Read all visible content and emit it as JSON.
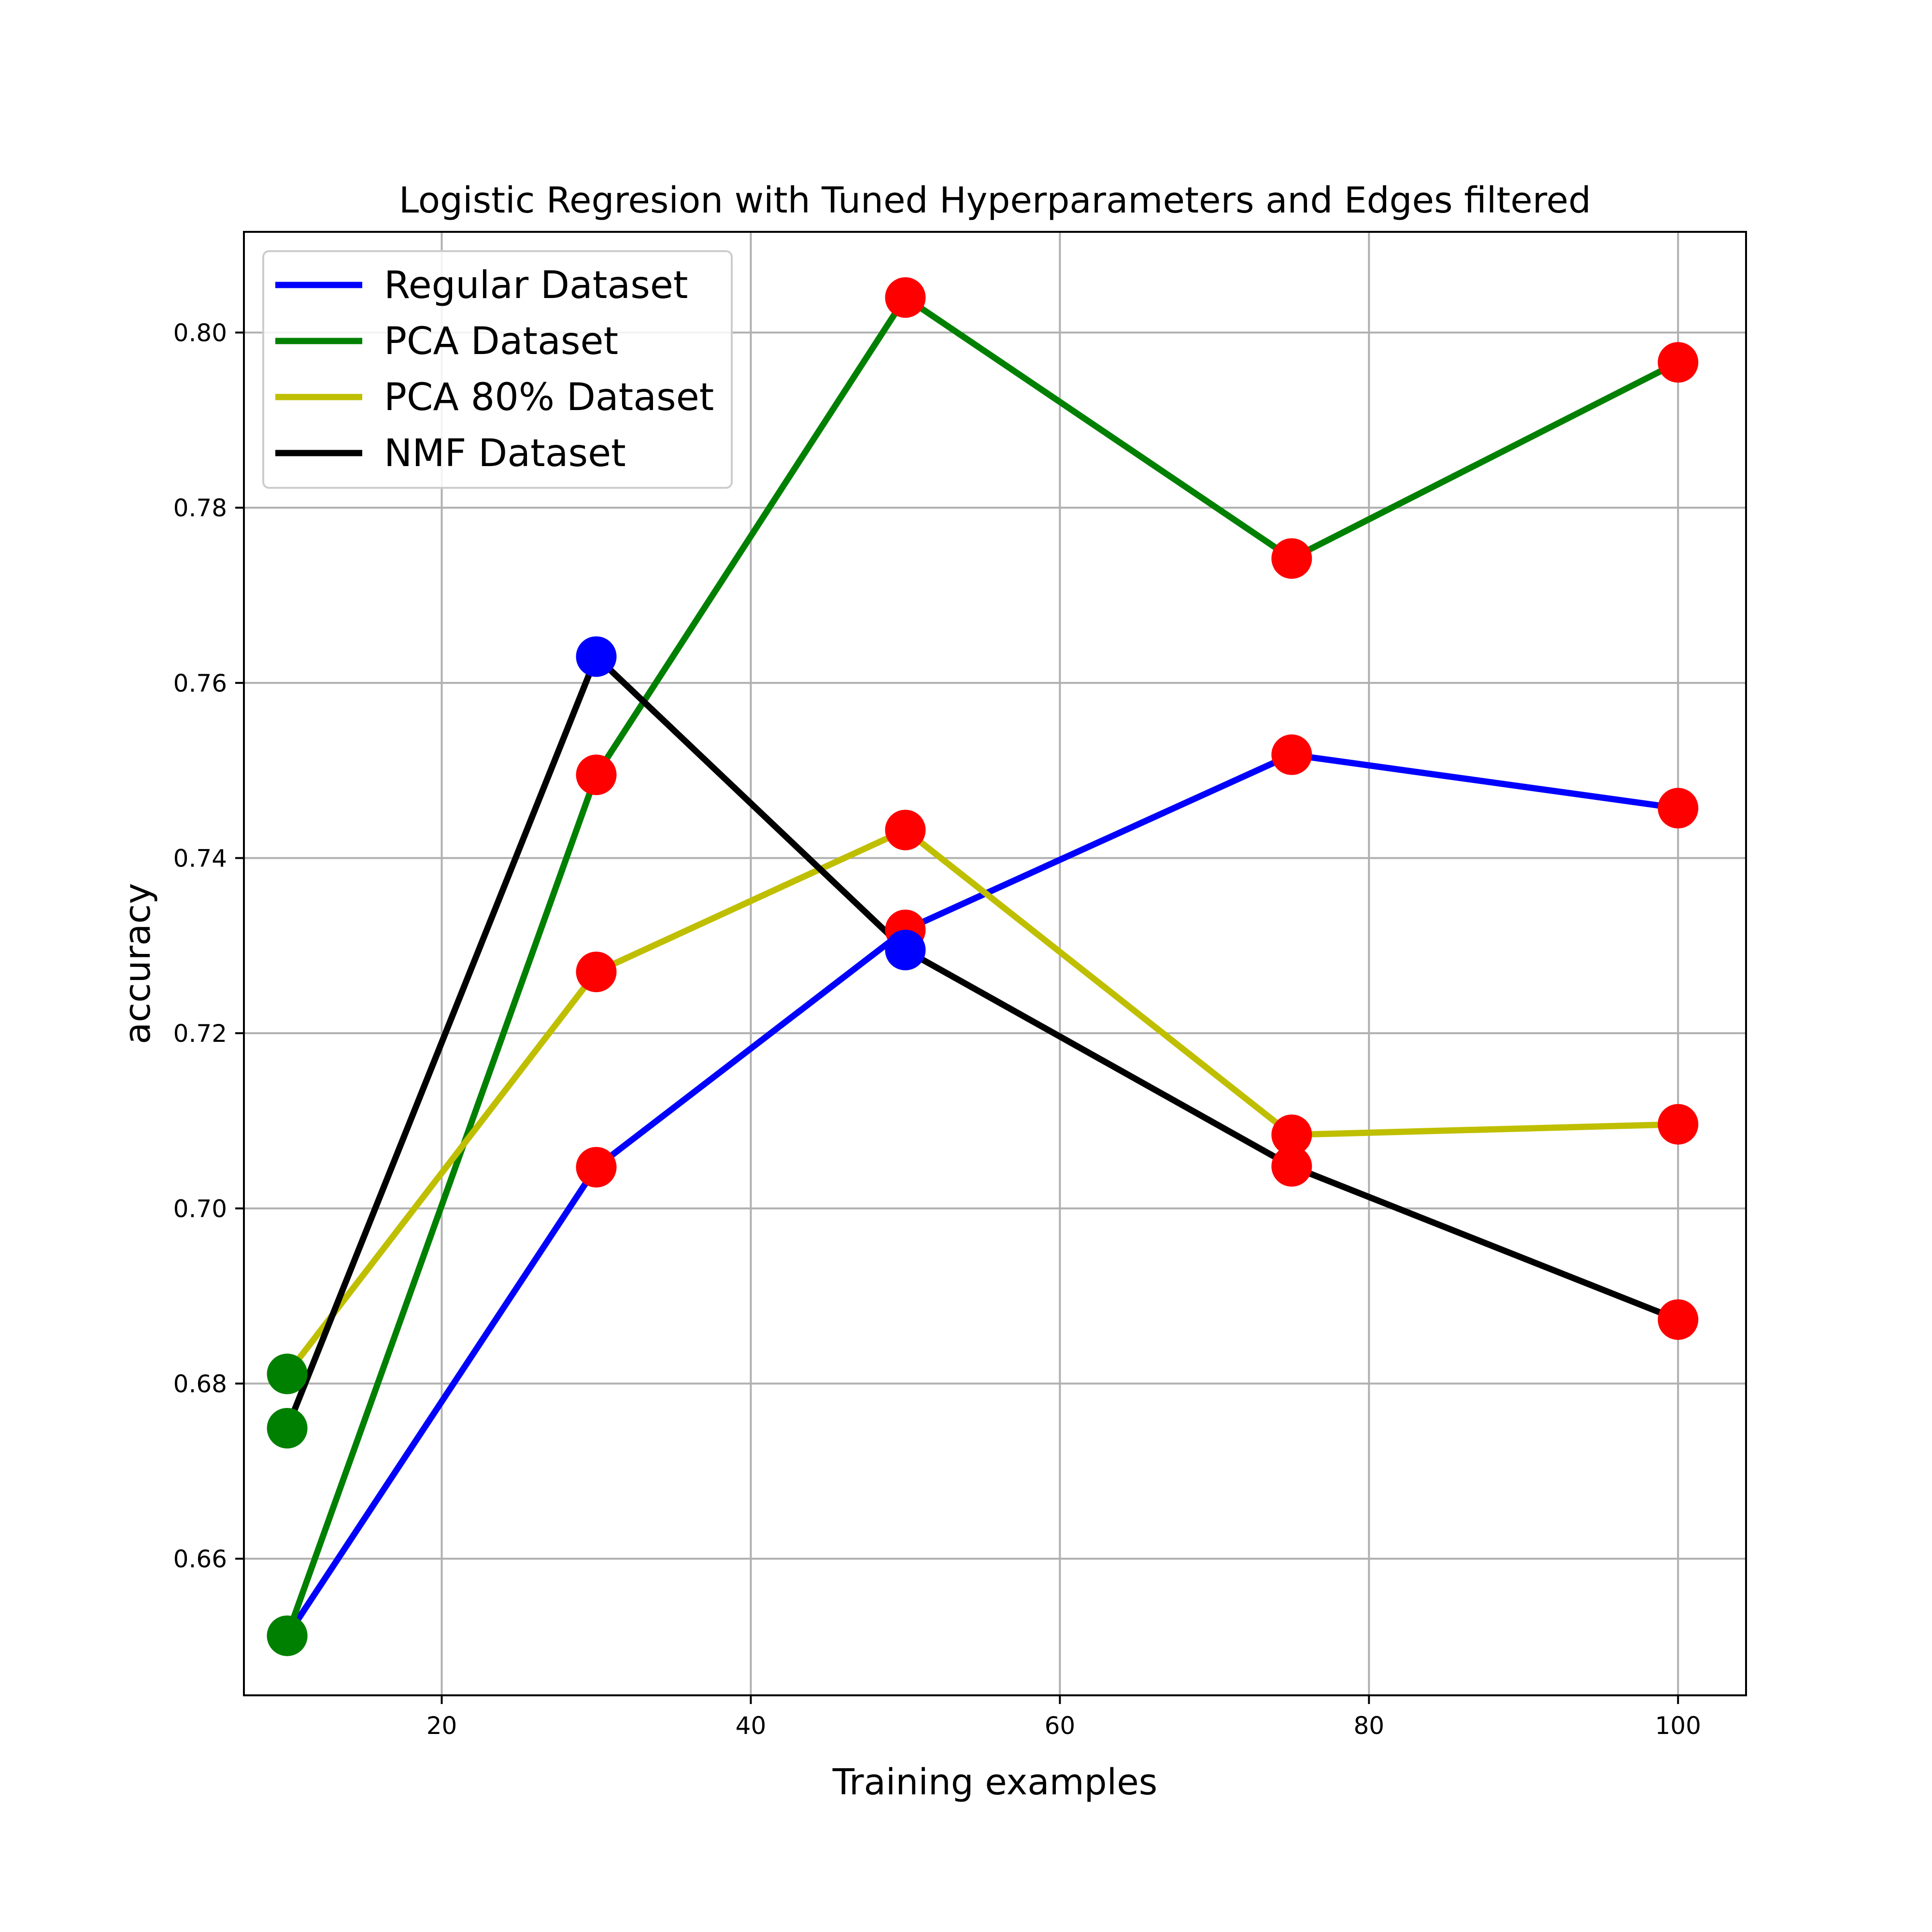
{
  "chart_data": {
    "type": "line",
    "title": "Logistic Regresion with Tuned Hyperparameters and Edges filtered",
    "xlabel": "Training examples",
    "ylabel": "accuracy",
    "xlim": [
      7.2,
      104.4
    ],
    "ylim": [
      0.6444,
      0.8115
    ],
    "xticks": [
      20,
      40,
      60,
      80,
      100
    ],
    "xtick_labels": [
      "20",
      "40",
      "60",
      "80",
      "100"
    ],
    "yticks": [
      0.66,
      0.68,
      0.7,
      0.72,
      0.74,
      0.76,
      0.78,
      0.8
    ],
    "ytick_labels": [
      "0.66",
      "0.68",
      "0.70",
      "0.72",
      "0.74",
      "0.76",
      "0.78",
      "0.80"
    ],
    "grid": true,
    "legend_position": "upper-left",
    "x": [
      10,
      30,
      50,
      75,
      100
    ],
    "series": [
      {
        "name": "Regular Dataset",
        "color": "#0000ff",
        "values": [
          0.6512,
          0.7047,
          0.7318,
          0.7518,
          0.7457
        ],
        "marker_colors": [
          "#008000",
          "#ff0000",
          "#ff0000",
          "#ff0000",
          "#ff0000"
        ]
      },
      {
        "name": "PCA Dataset",
        "color": "#008000",
        "values": [
          0.6512,
          0.7495,
          0.804,
          0.7742,
          0.7966
        ],
        "marker_colors": [
          "#008000",
          "#ff0000",
          "#ff0000",
          "#ff0000",
          "#ff0000"
        ]
      },
      {
        "name": "PCA 80% Dataset",
        "color": "#bfbf00",
        "values": [
          0.6811,
          0.727,
          0.7432,
          0.7084,
          0.7096
        ],
        "marker_colors": [
          "#008000",
          "#ff0000",
          "#ff0000",
          "#ff0000",
          "#ff0000"
        ]
      },
      {
        "name": "NMF Dataset",
        "color": "#000000",
        "values": [
          0.6749,
          0.763,
          0.7295,
          0.7048,
          0.6873
        ],
        "marker_colors": [
          "#008000",
          "#0000ff",
          "#0000ff",
          "#ff0000",
          "#ff0000"
        ]
      }
    ]
  }
}
